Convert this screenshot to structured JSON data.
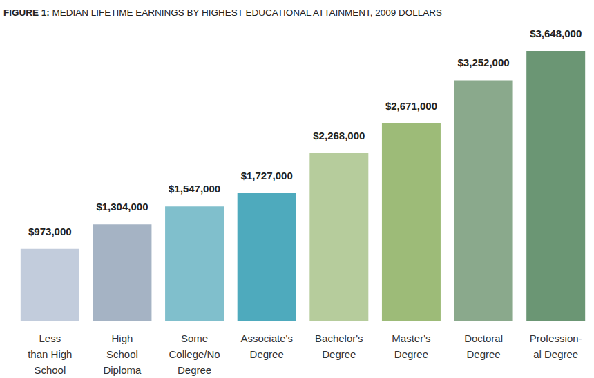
{
  "chart_data": {
    "type": "bar",
    "title": "FIGURE 1: MEDIAN LIFETIME EARNINGS BY HIGHEST EDUCATIONAL ATTAINMENT, 2009 DOLLARS",
    "categories": [
      "Less\nthan High\nSchool",
      "High\nSchool\nDiploma",
      "Some\nCollege/No\nDegree",
      "Associate's\nDegree",
      "Bachelor's\nDegree",
      "Master's\nDegree",
      "Doctoral\nDegree",
      "Profession-\nal Degree"
    ],
    "values": [
      973000,
      1304000,
      1547000,
      1727000,
      2268000,
      2671000,
      3252000,
      3648000
    ],
    "value_labels": [
      "$973,000",
      "$1,304,000",
      "$1,547,000",
      "$1,727,000",
      "$2,268,000",
      "$2,671,000",
      "$3,252,000",
      "$3,648,000"
    ],
    "colors": [
      "#c2ccdc",
      "#a5b3c4",
      "#80bfcc",
      "#4eaabd",
      "#b6cc9c",
      "#9dbb78",
      "#8aa98c",
      "#6b9674"
    ],
    "ylim": [
      0,
      3648000
    ],
    "data_labels": true,
    "tick_labels": "x",
    "grid": false
  }
}
